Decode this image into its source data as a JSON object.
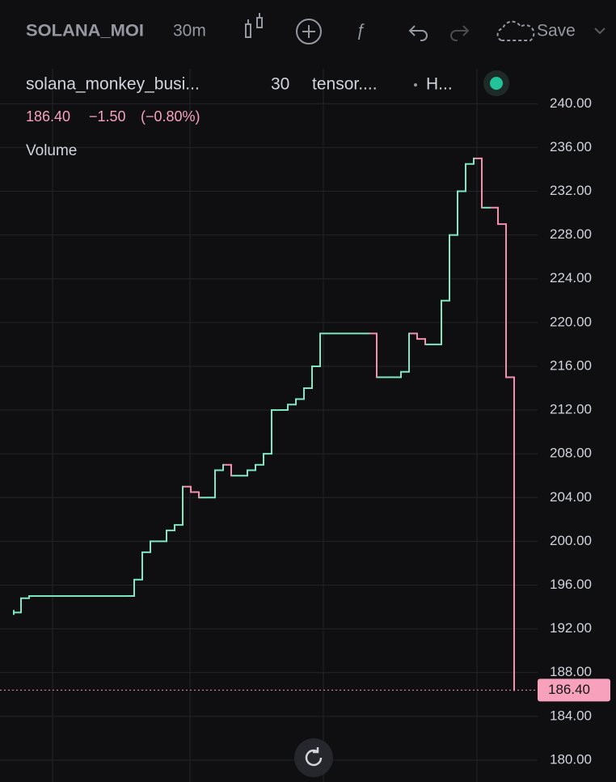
{
  "toolbar": {
    "symbol": "SOLANA_MOI",
    "interval": "30m",
    "save": "Save"
  },
  "chart_data": {
    "type": "line",
    "legend": {
      "name": "solana_monkey_busi...",
      "interval": "30",
      "source": "tensor....",
      "extra": "H...",
      "last": "186.40",
      "change": "−1.50",
      "change_pct": "(−0.80%)",
      "volume": "Volume"
    },
    "series": [
      {
        "name": "solana_monkey_busi...",
        "up_color": "#7ee8c1",
        "down_color": "#f48fae",
        "values": [
          193.5,
          194.8,
          195,
          195,
          195,
          195,
          195,
          195,
          195,
          195,
          195,
          195,
          195,
          195,
          195,
          196.5,
          199,
          200,
          200,
          201,
          201.5,
          205,
          204.5,
          204,
          204,
          206.5,
          207,
          206,
          206,
          206.5,
          207,
          208,
          212,
          212,
          212.5,
          213,
          214,
          216,
          219,
          219,
          219,
          219,
          219,
          219,
          219,
          215,
          215,
          215,
          215.5,
          219,
          218.5,
          218,
          218,
          222,
          228,
          232,
          234.5,
          235,
          230.5,
          230.5,
          229,
          215,
          186.4
        ]
      }
    ],
    "last_price": {
      "value": 186.4,
      "label": "186.40"
    },
    "ylim": [
      178,
      243.2
    ],
    "yticks": [
      {
        "value": 180,
        "label": "180.00"
      },
      {
        "value": 184,
        "label": "184.00"
      },
      {
        "value": 188,
        "label": "188.00"
      },
      {
        "value": 192,
        "label": "192.00"
      },
      {
        "value": 196,
        "label": "196.00"
      },
      {
        "value": 200,
        "label": "200.00"
      },
      {
        "value": 204,
        "label": "204.00"
      },
      {
        "value": 208,
        "label": "208.00"
      },
      {
        "value": 212,
        "label": "212.00"
      },
      {
        "value": 216,
        "label": "216.00"
      },
      {
        "value": 220,
        "label": "220.00"
      },
      {
        "value": 224,
        "label": "224.00"
      },
      {
        "value": 228,
        "label": "228.00"
      },
      {
        "value": 232,
        "label": "232.00"
      },
      {
        "value": 236,
        "label": "236.00"
      },
      {
        "value": 240,
        "label": "240.00"
      }
    ],
    "grid": true
  }
}
